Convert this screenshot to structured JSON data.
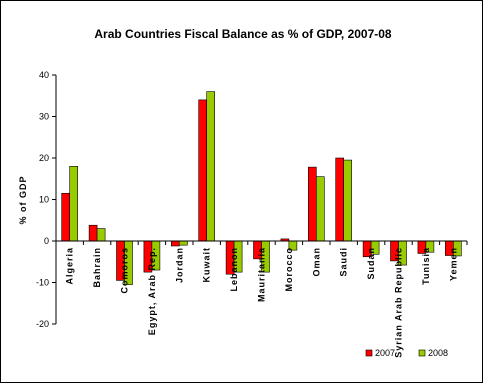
{
  "chart_data": {
    "type": "bar",
    "title": "Arab Countries Fiscal Balance as % of GDP, 2007-08",
    "ylabel": "% of GDP",
    "xlabel": "",
    "ylim": [
      -20,
      40
    ],
    "yticks": [
      -20,
      -10,
      0,
      10,
      20,
      30,
      40
    ],
    "grid": false,
    "legend_position": "bottom-right",
    "categories": [
      "Algeria",
      "Bahrain",
      "Comoros",
      "Egypt, Arab Rep.",
      "Jordan",
      "Kuwait",
      "Lebanon",
      "Mauritania",
      "Morocco",
      "Oman",
      "Saudi",
      "Sudan",
      "Syrian Arab Republic",
      "Tunisia",
      "Yemen"
    ],
    "series": [
      {
        "name": "2007",
        "color": "#ff0000",
        "values": [
          11.5,
          3.8,
          -9.5,
          -7.5,
          -1.2,
          34,
          -8,
          -4.3,
          0.5,
          17.8,
          20,
          -3.8,
          -4.8,
          -3,
          -3.5
        ]
      },
      {
        "name": "2008",
        "color": "#99cc00",
        "values": [
          18,
          3,
          -10.5,
          -7,
          -1,
          36,
          -7.5,
          -7.5,
          -2.2,
          15.5,
          19.5,
          -3.2,
          -5.8,
          -2.7,
          -3.6
        ]
      }
    ]
  }
}
